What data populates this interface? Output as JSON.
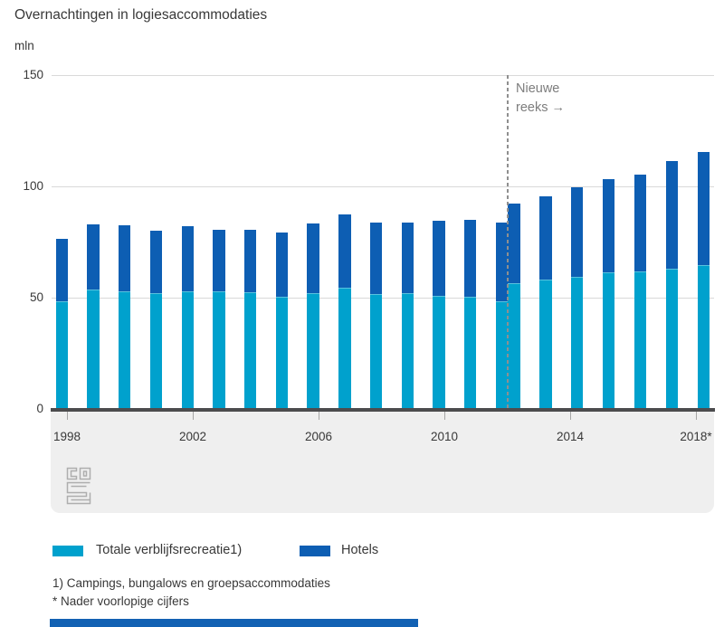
{
  "chart_data": {
    "type": "bar",
    "stacked": true,
    "title": "Overnachtingen in logiesaccommodaties",
    "unit": "mln",
    "ylim": [
      0,
      150
    ],
    "yticks": [
      0,
      50,
      100,
      150
    ],
    "xticks": [
      "1998",
      "2002",
      "2006",
      "2010",
      "2014",
      "2018*"
    ],
    "annotation": [
      "Nieuwe",
      "reeks →"
    ],
    "annotation_meaning": "nieuwe reeks vanaf 2012",
    "grid": true,
    "legend_position": "bottom",
    "categories": [
      "1998",
      "1999",
      "2000",
      "2001",
      "2002",
      "2003",
      "2004",
      "2005",
      "2006",
      "2007",
      "2008",
      "2009",
      "2010",
      "2011",
      "2012",
      "2012",
      "2013",
      "2014",
      "2015",
      "2016",
      "2017",
      "2018*"
    ],
    "new_series_from_index": 15,
    "series": [
      {
        "name": "Totale verblijfsrecreatie1)",
        "color": "#00a1cd",
        "values": [
          48.5,
          53.5,
          53.0,
          52.0,
          53.0,
          53.0,
          52.5,
          50.5,
          52.0,
          54.5,
          51.5,
          52.0,
          51.0,
          50.5,
          48.5,
          56.5,
          58.0,
          59.5,
          61.5,
          62.0,
          63.0,
          64.5
        ]
      },
      {
        "name": "Hotels",
        "color": "#0d5eb3",
        "values": [
          28.0,
          29.5,
          29.5,
          28.0,
          29.0,
          27.5,
          28.0,
          29.0,
          31.5,
          33.0,
          32.5,
          32.0,
          33.5,
          34.5,
          35.5,
          36.0,
          37.5,
          40.0,
          42.0,
          43.5,
          48.5,
          51.0
        ]
      }
    ]
  },
  "page": {
    "footnotes": [
      "1) Campings, bungalows en groepsaccommodaties",
      "* Nader voorlopige cijfers"
    ],
    "logo_name": "cbs-logo",
    "footer_bar_color": "#1261b3"
  }
}
